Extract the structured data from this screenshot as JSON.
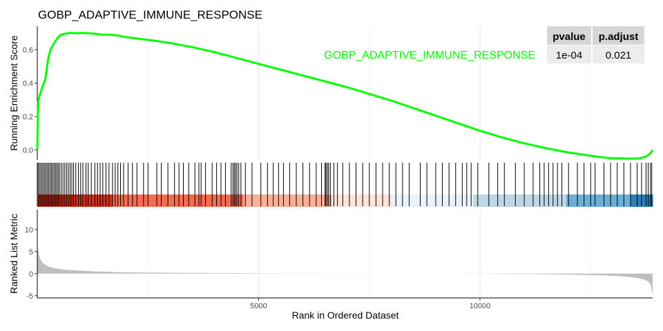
{
  "chart_data": {
    "type": "line",
    "title": "GOBP_ADAPTIVE_IMMUNE_RESPONSE",
    "xlabel": "Rank in Ordered Dataset",
    "n_genes": 13900,
    "x_ticks": [
      5000,
      10000
    ],
    "colors": {
      "curve": "#00ff00",
      "hits": "#000000",
      "metric": "#bebebe",
      "grid": "#ebebeb"
    },
    "enrichment": {
      "ylabel": "Running Enrichment Score",
      "ylim": [
        -0.06,
        0.74
      ],
      "y_ticks": [
        0.0,
        0.2,
        0.4,
        0.6
      ],
      "y_tick_labels": [
        "0.0",
        "0.2",
        "0.4",
        "0.6"
      ],
      "x": [
        0,
        20,
        60,
        120,
        180,
        250,
        300,
        380,
        460,
        540,
        640,
        740,
        860,
        1000,
        1150,
        1300,
        1450,
        1600,
        1800,
        2000,
        2300,
        2600,
        3000,
        3500,
        4000,
        4500,
        5000,
        5500,
        6000,
        6500,
        7000,
        7500,
        8000,
        8500,
        9000,
        9500,
        10000,
        10500,
        11000,
        11500,
        12000,
        12500,
        12800,
        13000,
        13200,
        13400,
        13600,
        13750,
        13850,
        13900
      ],
      "y": [
        0.0,
        0.29,
        0.33,
        0.38,
        0.42,
        0.55,
        0.6,
        0.64,
        0.67,
        0.69,
        0.695,
        0.7,
        0.698,
        0.7,
        0.698,
        0.695,
        0.69,
        0.69,
        0.685,
        0.675,
        0.665,
        0.655,
        0.64,
        0.615,
        0.585,
        0.55,
        0.515,
        0.48,
        0.445,
        0.41,
        0.375,
        0.335,
        0.295,
        0.25,
        0.205,
        0.16,
        0.115,
        0.075,
        0.04,
        0.01,
        -0.015,
        -0.035,
        -0.045,
        -0.05,
        -0.05,
        -0.052,
        -0.05,
        -0.04,
        -0.02,
        0.0
      ]
    },
    "gene_hits": [
      20,
      50,
      80,
      110,
      140,
      170,
      200,
      230,
      260,
      290,
      320,
      350,
      380,
      410,
      440,
      470,
      500,
      540,
      580,
      620,
      660,
      700,
      740,
      780,
      820,
      870,
      930,
      980,
      1030,
      1100,
      1150,
      1220,
      1300,
      1360,
      1420,
      1480,
      1550,
      1620,
      1700,
      1760,
      1820,
      1880,
      1950,
      2050,
      2150,
      2250,
      2400,
      2500,
      2700,
      2800,
      2950,
      3100,
      3200,
      3300,
      3420,
      3560,
      3650,
      3700,
      3800,
      3950,
      4050,
      4150,
      4250,
      4380,
      4420,
      4450,
      4480,
      4510,
      4550,
      4600,
      4700,
      4850,
      5050,
      5200,
      5330,
      5450,
      5560,
      5700,
      5850,
      6000,
      6150,
      6300,
      6420,
      6500,
      6520,
      6550,
      6580,
      6620,
      6700,
      6780,
      6900,
      7050,
      7200,
      7350,
      7500,
      7650,
      7800,
      7950,
      8100,
      8250,
      8400,
      8650,
      8800,
      9000,
      9150,
      9300,
      9450,
      9600,
      9700,
      9800,
      9950,
      10200,
      10400,
      10550,
      10800,
      11000,
      11200,
      11350,
      11450,
      11550,
      11650,
      11750,
      11850,
      12000,
      12200,
      12350,
      12500,
      12600,
      12800,
      12950,
      13100,
      13250,
      13400,
      13550,
      13650,
      13750,
      13800,
      13850,
      13880
    ],
    "heat_bands": [
      {
        "from": 0,
        "to": 1700,
        "color": "#d7301f"
      },
      {
        "from": 1700,
        "to": 4650,
        "color": "#f66a51"
      },
      {
        "from": 4650,
        "to": 6650,
        "color": "#fcae96"
      },
      {
        "from": 6650,
        "to": 8000,
        "color": "#fde3d8"
      },
      {
        "from": 8000,
        "to": 9850,
        "color": "#e9f1fa"
      },
      {
        "from": 9850,
        "to": 11950,
        "color": "#bdd7e7"
      },
      {
        "from": 11950,
        "to": 13400,
        "color": "#6baed6"
      },
      {
        "from": 13400,
        "to": 13900,
        "color": "#2c7fb8"
      }
    ],
    "ranked_metric": {
      "ylabel": "Ranked List Metric",
      "ylim": [
        -5.5,
        14.5
      ],
      "y_ticks": [
        -5,
        0,
        5,
        10
      ],
      "y_tick_labels": [
        "-5",
        "0",
        "5",
        "10"
      ],
      "x": [
        0,
        10,
        30,
        60,
        100,
        150,
        250,
        400,
        600,
        900,
        1300,
        1800,
        2500,
        3500,
        5000,
        6500,
        8000,
        8900,
        9000,
        9600,
        9700,
        11000,
        12000,
        12800,
        13200,
        13500,
        13700,
        13800,
        13860,
        13900
      ],
      "y": [
        8.5,
        6.0,
        4.5,
        3.5,
        2.7,
        2.2,
        1.6,
        1.2,
        0.9,
        0.7,
        0.5,
        0.35,
        0.25,
        0.15,
        0.08,
        0.03,
        0.01,
        0.0,
        0.0,
        0.0,
        -0.02,
        -0.1,
        -0.2,
        -0.4,
        -0.6,
        -0.9,
        -1.3,
        -1.8,
        -2.6,
        -5.0
      ]
    },
    "legend": [
      {
        "label": "GOBP_ADAPTIVE_IMMUNE_RESPONSE",
        "color": "#00ff00"
      }
    ],
    "stats_table": {
      "headers": [
        "pvalue",
        "p.adjust"
      ],
      "rows": [
        [
          "1e-04",
          "0.021"
        ]
      ]
    }
  }
}
